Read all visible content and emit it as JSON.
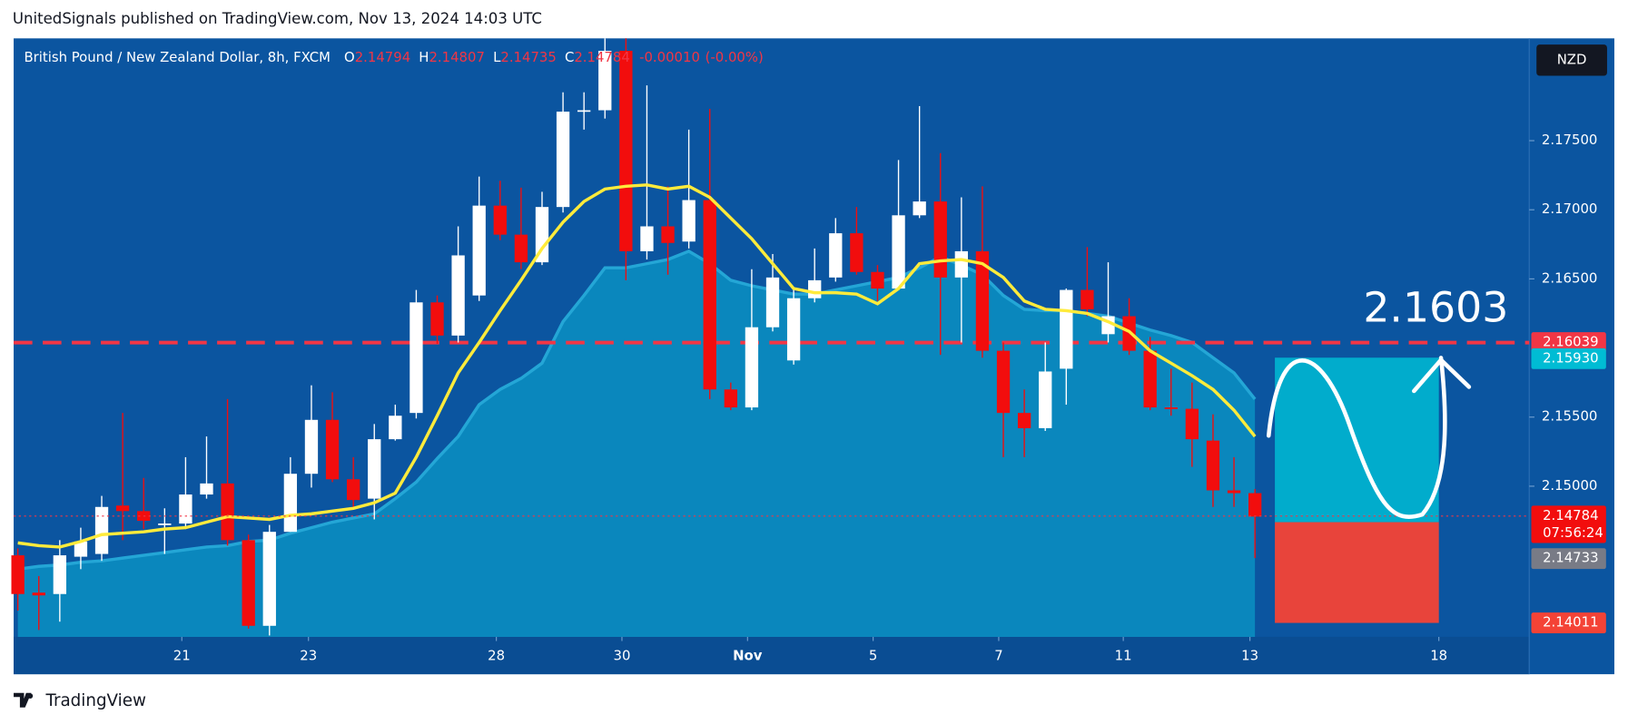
{
  "chart_data": {
    "type": "candlestick",
    "publisher": "UnitedSignals published on TradingView.com, Nov 13, 2024 14:03 UTC",
    "brand": "TradingView",
    "symbol": "British Pound / New Zealand Dollar, 8h, FXCM",
    "ohlc_labels": [
      "O",
      "H",
      "L",
      "C"
    ],
    "ohlc_values": [
      2.14794,
      2.14807,
      2.14735,
      2.14784
    ],
    "change": {
      "value": -0.0001,
      "label": "-0.00010"
    },
    "change_pct": "(-0.00%)",
    "currency": "NZD",
    "countdown": "07:56:24",
    "annotation": "2.1603",
    "up_color": "#ffffff",
    "down_color": "#f20d0d",
    "ylim": [
      2.1391,
      2.1824
    ],
    "yticks": [
      {
        "value": 2.15,
        "label": "2.15000"
      },
      {
        "value": 2.155,
        "label": "2.15500"
      },
      {
        "value": 2.165,
        "label": "2.16500"
      },
      {
        "value": 2.17,
        "label": "2.17000"
      },
      {
        "value": 2.175,
        "label": "2.17500"
      }
    ],
    "xlim": [
      -0.2,
      72.08
    ],
    "xticks": [
      {
        "value": 7.82,
        "label": "21"
      },
      {
        "value": 13.86,
        "label": "23"
      },
      {
        "value": 22.82,
        "label": "28"
      },
      {
        "value": 28.81,
        "label": "30"
      },
      {
        "value": 34.8,
        "label": "Nov"
      },
      {
        "value": 40.79,
        "label": "5"
      },
      {
        "value": 46.78,
        "label": "7"
      },
      {
        "value": 52.72,
        "label": "11"
      },
      {
        "value": 58.76,
        "label": "13"
      },
      {
        "value": 67.77,
        "label": "18"
      }
    ],
    "open": [
      2.145,
      2.1423,
      2.1422,
      2.1449,
      2.1451,
      2.1486,
      2.1482,
      2.1472,
      2.1473,
      2.1494,
      2.1502,
      2.1461,
      2.1399,
      2.1467,
      2.1509,
      2.1548,
      2.1505,
      2.1491,
      2.1534,
      2.1553,
      2.1633,
      2.1609,
      2.1638,
      2.1703,
      2.1682,
      2.1662,
      2.1702,
      2.1771,
      2.1772,
      2.1815,
      2.167,
      2.1688,
      2.1677,
      2.1707,
      2.157,
      2.1557,
      2.1615,
      2.1591,
      2.1636,
      2.1651,
      2.1683,
      2.1655,
      2.1643,
      2.1696,
      2.1706,
      2.1651,
      2.167,
      2.1598,
      2.1553,
      2.1542,
      2.1585,
      2.1642,
      2.161,
      2.1623,
      2.1598,
      2.1557,
      2.1556,
      2.1533,
      2.1497,
      2.1495
    ],
    "high": [
      2.1455,
      2.1435,
      2.1461,
      2.147,
      2.1493,
      2.1553,
      2.1506,
      2.1484,
      2.1521,
      2.1536,
      2.1563,
      2.1465,
      2.1472,
      2.1521,
      2.1573,
      2.1568,
      2.1521,
      2.1545,
      2.1559,
      2.1642,
      2.1638,
      2.1688,
      2.1724,
      2.1721,
      2.1716,
      2.1713,
      2.1785,
      2.1785,
      2.1824,
      2.1824,
      2.179,
      2.1717,
      2.1758,
      2.1773,
      2.1575,
      2.1657,
      2.1668,
      2.1642,
      2.1672,
      2.1694,
      2.1702,
      2.166,
      2.1736,
      2.1775,
      2.1741,
      2.1709,
      2.1717,
      2.1604,
      2.157,
      2.1604,
      2.1643,
      2.1673,
      2.1662,
      2.1636,
      2.1608,
      2.1585,
      2.1575,
      2.1552,
      2.1521,
      2.1498
    ],
    "low": [
      2.141,
      2.1396,
      2.1402,
      2.144,
      2.1446,
      2.1461,
      2.1469,
      2.1451,
      2.1469,
      2.1491,
      2.1457,
      2.1397,
      2.1392,
      2.1467,
      2.1499,
      2.1503,
      2.1484,
      2.1476,
      2.1533,
      2.1549,
      2.1603,
      2.1604,
      2.1634,
      2.1678,
      2.1657,
      2.166,
      2.1698,
      2.1758,
      2.1766,
      2.1649,
      2.1664,
      2.1653,
      2.1672,
      2.1563,
      2.1555,
      2.1555,
      2.1612,
      2.1588,
      2.1633,
      2.1648,
      2.1653,
      2.1634,
      2.1642,
      2.1694,
      2.1595,
      2.1604,
      2.1593,
      2.1521,
      2.1521,
      2.154,
      2.1559,
      2.1623,
      2.1604,
      2.1595,
      2.1555,
      2.1551,
      2.1514,
      2.1485,
      2.1485,
      2.1448
    ],
    "close": [
      2.1422,
      2.1421,
      2.145,
      2.146,
      2.1485,
      2.1482,
      2.1475,
      2.1473,
      2.1494,
      2.1502,
      2.1461,
      2.1399,
      2.1467,
      2.1509,
      2.1548,
      2.1505,
      2.149,
      2.1534,
      2.1551,
      2.1633,
      2.1609,
      2.1667,
      2.1703,
      2.1682,
      2.1662,
      2.1702,
      2.1771,
      2.1772,
      2.1815,
      2.167,
      2.1688,
      2.1676,
      2.1707,
      2.157,
      2.1557,
      2.1615,
      2.1651,
      2.1636,
      2.1649,
      2.1683,
      2.1655,
      2.1643,
      2.1696,
      2.1706,
      2.1651,
      2.167,
      2.1598,
      2.1553,
      2.1542,
      2.1583,
      2.1642,
      2.1628,
      2.1623,
      2.1598,
      2.1557,
      2.1556,
      2.1534,
      2.1497,
      2.1495,
      2.1478
    ],
    "ma": {
      "color": "#ffeb3b",
      "values": [
        2.1459,
        2.1457,
        2.1456,
        2.146,
        2.1465,
        2.1466,
        2.1467,
        2.1469,
        2.147,
        2.1474,
        2.1478,
        2.1477,
        2.1476,
        2.1479,
        2.148,
        2.1482,
        2.1484,
        2.1488,
        2.1495,
        2.1521,
        2.1551,
        2.1582,
        2.1604,
        2.1627,
        2.1649,
        2.1672,
        2.1691,
        2.1706,
        2.1715,
        2.1717,
        2.1718,
        2.1715,
        2.1717,
        2.1709,
        2.1694,
        2.1679,
        2.1661,
        2.1643,
        2.164,
        2.164,
        2.1639,
        2.1632,
        2.1643,
        2.1661,
        2.1663,
        2.1664,
        2.1661,
        2.1651,
        2.1634,
        2.1628,
        2.1627,
        2.1625,
        2.1619,
        2.1612,
        2.1598,
        2.1589,
        2.158,
        2.157,
        2.1555,
        2.1536
      ]
    },
    "area": {
      "color": "#0a87bd",
      "values": [
        2.144,
        2.1442,
        2.1443,
        2.1445,
        2.1446,
        2.1448,
        2.145,
        2.1452,
        2.1454,
        2.1456,
        2.1457,
        2.146,
        2.1461,
        2.1466,
        2.147,
        2.1474,
        2.1477,
        2.148,
        2.1491,
        2.1503,
        2.152,
        2.1536,
        2.1559,
        2.157,
        2.1578,
        2.1589,
        2.1619,
        2.1638,
        2.1658,
        2.1658,
        2.1661,
        2.1664,
        2.167,
        2.1661,
        2.1649,
        2.1645,
        2.1642,
        2.1639,
        2.1639,
        2.1642,
        2.1645,
        2.1648,
        2.1651,
        2.1658,
        2.1666,
        2.166,
        2.1653,
        2.1638,
        2.1628,
        2.1627,
        2.1627,
        2.1625,
        2.1623,
        2.1618,
        2.1613,
        2.1609,
        2.1604,
        2.1593,
        2.1582,
        2.1563
      ]
    },
    "resistance": {
      "value": 2.16039,
      "label": "2.16039",
      "color": "#f23645"
    },
    "target": {
      "value": 2.1593,
      "label": "2.15930",
      "color": "#00bcd4"
    },
    "stop": {
      "value": 2.14011,
      "label": "2.14011",
      "color": "#f44336"
    },
    "entry": 2.1474,
    "prev_close": {
      "value": 2.14733,
      "label": "2.14733"
    }
  }
}
